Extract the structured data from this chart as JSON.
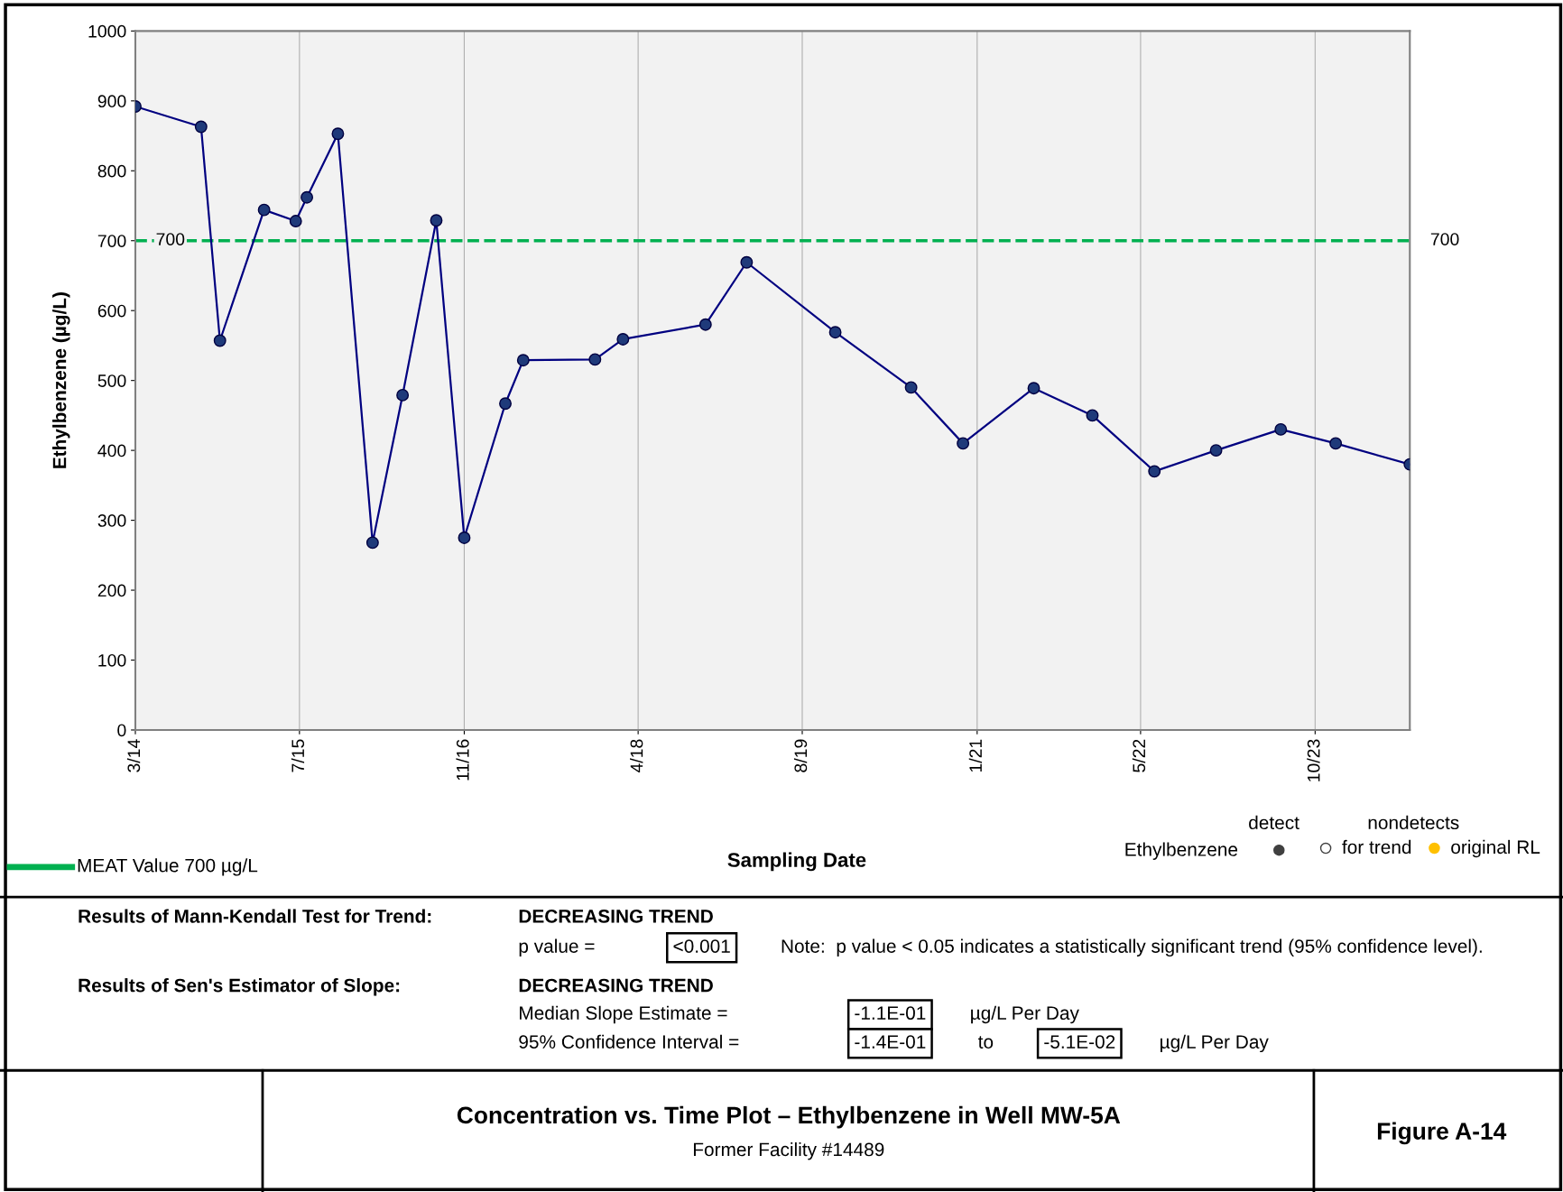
{
  "chart_data": {
    "type": "line",
    "title": "Concentration vs. Time Plot – Ethylbenzene in Well MW-5A",
    "subtitle": "Former Facility #14489",
    "xlabel": "Sampling Date",
    "ylabel": "Ethylbenzene (µg/L)",
    "x": [
      "2014-03-01",
      "2014-09-12",
      "2014-11-07",
      "2015-03-18",
      "2015-06-20",
      "2015-07-23",
      "2015-10-23",
      "2016-02-03",
      "2016-05-02",
      "2016-08-10",
      "2016-11-01",
      "2017-03-03",
      "2017-04-25",
      "2017-11-24",
      "2018-02-15",
      "2018-10-18",
      "2019-02-17",
      "2019-11-07",
      "2020-06-19",
      "2020-11-20",
      "2021-06-18",
      "2021-12-09",
      "2022-06-11",
      "2022-12-11",
      "2023-06-21",
      "2023-12-01",
      "2024-07-08"
    ],
    "series": [
      {
        "color": "#000080",
        "values": [
          892,
          863,
          557,
          744,
          728,
          762,
          853,
          268,
          479,
          729,
          275,
          467,
          529,
          530,
          559,
          580,
          669,
          569,
          490,
          410,
          489,
          450,
          370,
          400,
          430,
          410,
          380
        ]
      }
    ],
    "marker": "circle",
    "line_style": "solid",
    "xlim": [
      "2014-03-01",
      "2024-07-08"
    ],
    "xticks": [
      {
        "value": "2014-03-01",
        "label": "3/14"
      },
      {
        "value": "2015-07-01",
        "label": "7/15"
      },
      {
        "value": "2016-11-01",
        "label": "11/16"
      },
      {
        "value": "2018-04-01",
        "label": "4/18"
      },
      {
        "value": "2019-08-01",
        "label": "8/19"
      },
      {
        "value": "2021-01-01",
        "label": "1/21"
      },
      {
        "value": "2022-05-01",
        "label": "5/22"
      },
      {
        "value": "2023-10-01",
        "label": "10/23"
      }
    ],
    "ylim": [
      0,
      1000
    ],
    "yticks": [
      0,
      100,
      200,
      300,
      400,
      500,
      600,
      700,
      800,
      900,
      1000
    ],
    "grid": "x",
    "ref_lines": [
      {
        "axis": "y",
        "value": 700,
        "label": "700",
        "color": "#00b050",
        "line_style": "dashed"
      }
    ],
    "annotations": [
      "MEAT Value 700 µg/L",
      "detect",
      "nondetects",
      "Ethylbenzene",
      "for trend",
      "original RL",
      "Results of Mann-Kendall Test for Trend:",
      "DECREASING TREND",
      "p value =",
      "<0.001",
      "Note:  p value < 0.05 indicates a statistically significant trend (95% confidence level).",
      "Results of Sen's Estimator of Slope:",
      "DECREASING TREND",
      "Median Slope Estimate =",
      "-1.1E-01",
      "µg/L Per Day",
      "95% Confidence Interval =",
      "-1.4E-01",
      "to",
      "-5.1E-02",
      "µg/L Per Day",
      "Figure A-14"
    ]
  }
}
